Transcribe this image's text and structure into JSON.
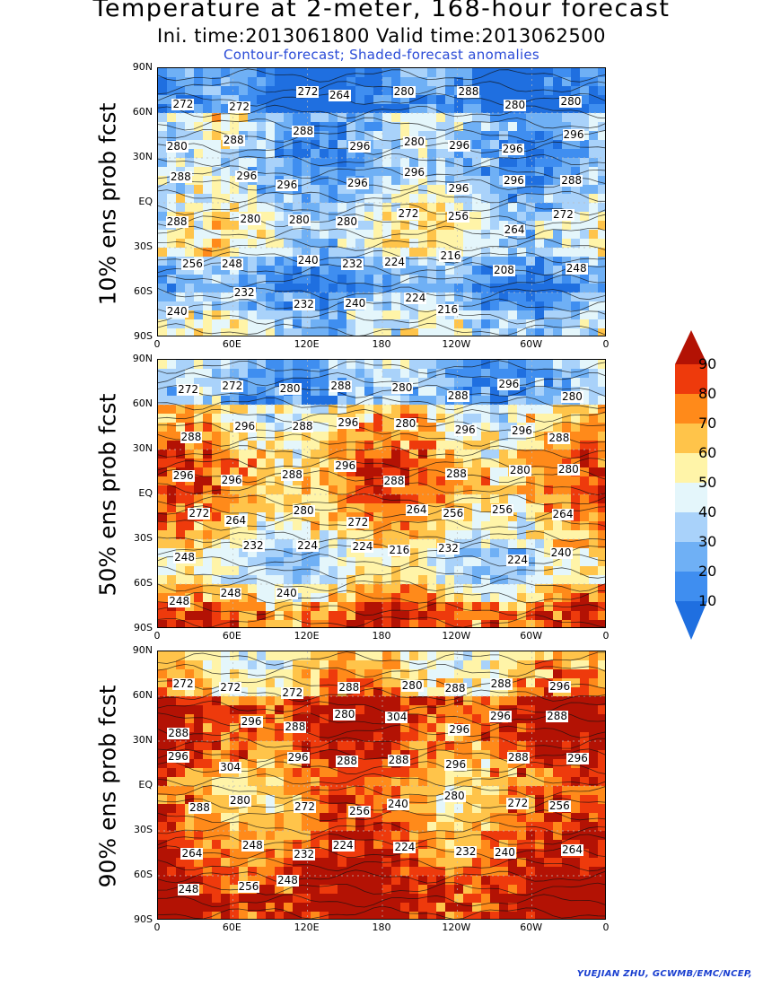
{
  "title": "Temperature at 2-meter, 168-hour forecast",
  "subtitle": "Ini. time:2013061800    Valid time:2013062500",
  "caption": "Contour-forecast; Shaded-forecast anomalies",
  "credit": "YUEJIAN ZHU, GCWMB/EMC/NCEP,",
  "lat_ticks": [
    "90N",
    "60N",
    "30N",
    "EQ",
    "30S",
    "60S",
    "90S"
  ],
  "lon_ticks": [
    "0",
    "60E",
    "120E",
    "180",
    "120W",
    "60W",
    "0"
  ],
  "colorbar": {
    "labels": [
      "10",
      "20",
      "30",
      "40",
      "50",
      "60",
      "70",
      "80",
      "90"
    ],
    "colors": [
      "#1f6fe0",
      "#3f8ef0",
      "#6fb0f5",
      "#a9d2fa",
      "#e4f6fb",
      "#fff4a8",
      "#ffc44a",
      "#ff8a1a",
      "#ee3a0c",
      "#b31204"
    ]
  },
  "panels": [
    {
      "ylabel": "10% ens prob fcst",
      "labels": [
        "272",
        "272",
        "272",
        "264",
        "280",
        "288",
        "280",
        "280",
        "280",
        "288",
        "288",
        "296",
        "280",
        "296",
        "296",
        "296",
        "288",
        "296",
        "296",
        "296",
        "296",
        "296",
        "296",
        "288",
        "288",
        "280",
        "280",
        "280",
        "272",
        "256",
        "264",
        "272",
        "256",
        "248",
        "240",
        "232",
        "224",
        "216",
        "208",
        "248",
        "240",
        "232",
        "232",
        "240",
        "224",
        "216"
      ]
    },
    {
      "ylabel": "50% ens prob fcst",
      "labels": [
        "272",
        "272",
        "280",
        "288",
        "280",
        "288",
        "296",
        "280",
        "288",
        "296",
        "288",
        "296",
        "280",
        "296",
        "296",
        "288",
        "296",
        "296",
        "288",
        "296",
        "288",
        "288",
        "280",
        "280",
        "272",
        "264",
        "280",
        "272",
        "264",
        "256",
        "256",
        "264",
        "248",
        "232",
        "224",
        "224",
        "216",
        "232",
        "224",
        "240",
        "248",
        "248",
        "240"
      ]
    },
    {
      "ylabel": "90% ens prob fcst",
      "labels": [
        "272",
        "272",
        "272",
        "288",
        "280",
        "288",
        "288",
        "296",
        "288",
        "296",
        "288",
        "280",
        "304",
        "296",
        "296",
        "288",
        "296",
        "304",
        "296",
        "288",
        "288",
        "296",
        "288",
        "296",
        "288",
        "280",
        "272",
        "256",
        "240",
        "280",
        "272",
        "256",
        "264",
        "248",
        "232",
        "224",
        "224",
        "232",
        "240",
        "264",
        "248",
        "256",
        "248"
      ]
    }
  ]
}
